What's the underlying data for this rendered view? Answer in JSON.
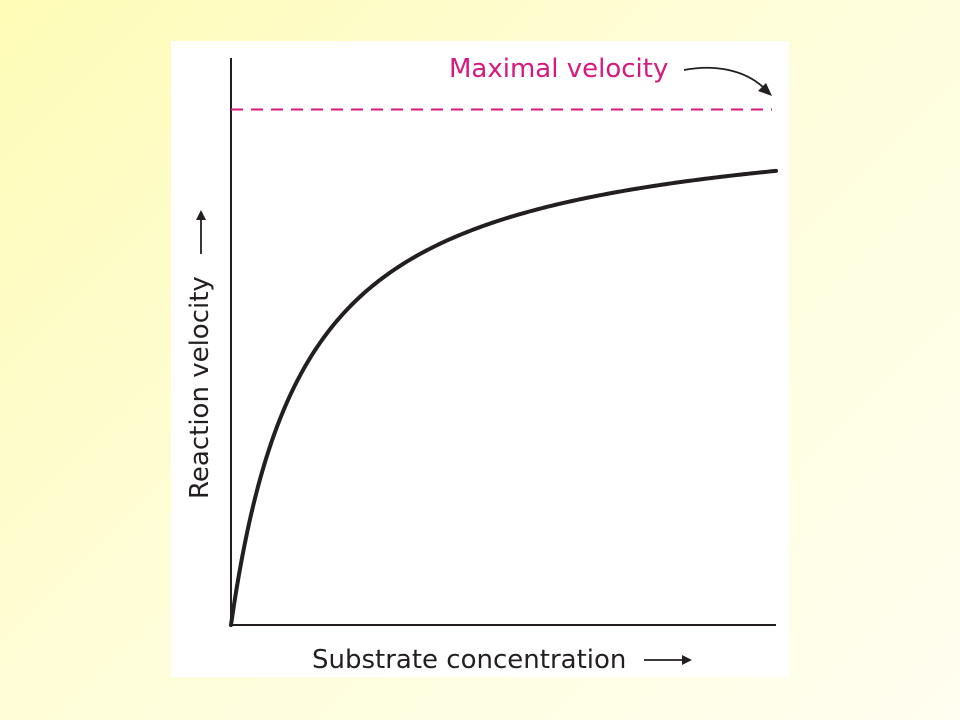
{
  "chart_data": {
    "type": "line",
    "xlabel": "Substrate concentration",
    "ylabel": "Reaction velocity",
    "xlim": [
      0,
      20
    ],
    "ylim": [
      0,
      1.1
    ],
    "vmax": 1,
    "km": 2.7,
    "annotations": [
      {
        "text": "Maximal velocity",
        "refers_to": "vmax"
      }
    ],
    "series": [
      {
        "x": [
          0,
          0.5,
          1,
          1.5,
          2,
          3,
          4,
          5,
          6,
          8,
          10,
          12,
          14,
          16,
          18,
          20
        ],
        "values": [
          0,
          0.156,
          0.27,
          0.357,
          0.426,
          0.526,
          0.597,
          0.649,
          0.69,
          0.748,
          0.787,
          0.816,
          0.838,
          0.856,
          0.87,
          0.881
        ]
      }
    ],
    "grid": false,
    "legend": "none"
  },
  "colors": {
    "curve": "#231f20",
    "vmax_line": "#d6197f",
    "annotation": "#d6197f",
    "panel": "#ffffff"
  }
}
